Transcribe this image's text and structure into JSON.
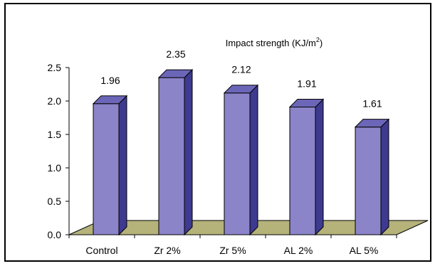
{
  "chart_data": {
    "type": "bar",
    "title": "Impact strength (KJ/m",
    "title_superscript": "2",
    "title_close": ")",
    "categories": [
      "Control",
      "Zr 2%",
      "Zr 5%",
      "AL 2%",
      "AL 5%"
    ],
    "values": [
      1.96,
      2.35,
      2.12,
      1.91,
      1.61
    ],
    "data_labels": [
      "1.96",
      "2.35",
      "2.12",
      "1.91",
      "1.61"
    ],
    "ylim": [
      0,
      2.5
    ],
    "yticks": [
      "0.0",
      "0.5",
      "1.0",
      "1.5",
      "2.0",
      "2.5"
    ],
    "ytick_values": [
      0,
      0.5,
      1.0,
      1.5,
      2.0,
      2.5
    ],
    "xlabel": "",
    "ylabel": "",
    "grid": false,
    "three_d": true,
    "colors": {
      "bar_front": "#8b84c9",
      "bar_side": "#3d3a8f",
      "bar_top": "#6c66b8",
      "floor": "#b5b27a",
      "border": "#000000"
    }
  }
}
